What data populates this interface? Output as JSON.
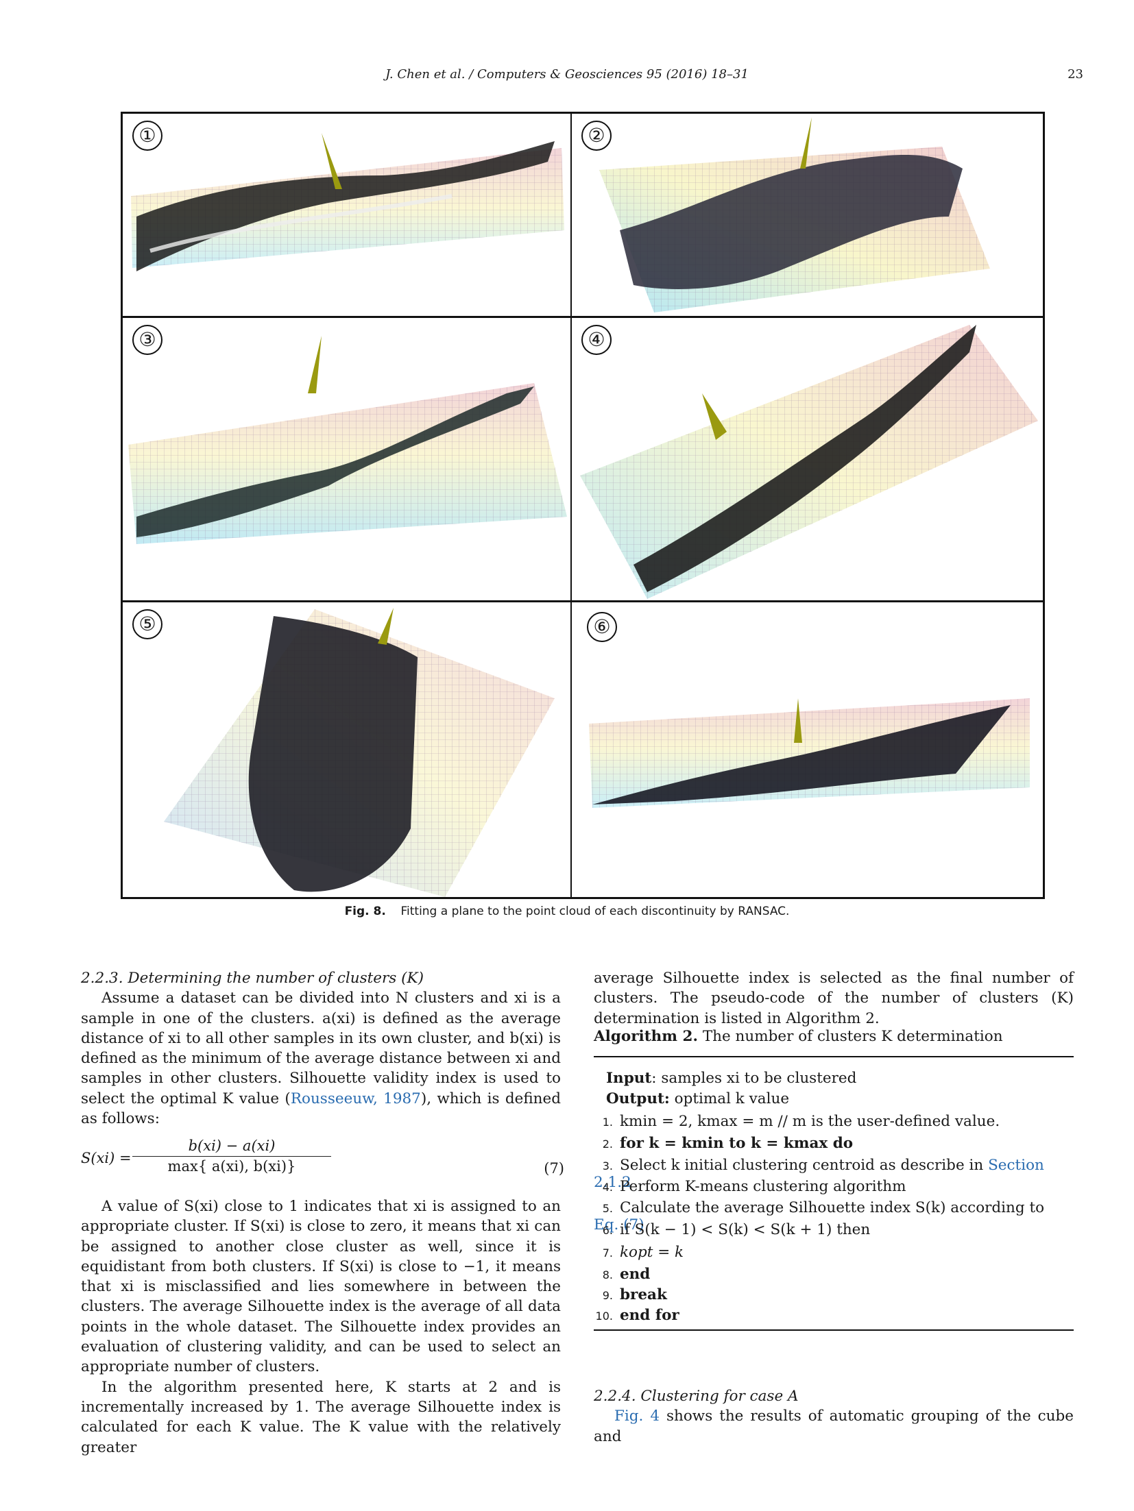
{
  "header": {
    "running_head": "J. Chen et al. / Computers & Geosciences 95 (2016) 18–31",
    "page_number": "23"
  },
  "figure": {
    "panels": [
      "①",
      "②",
      "③",
      "④",
      "⑤",
      "⑥"
    ],
    "caption_label": "Fig. 8.",
    "caption_text": "Fitting a plane to the point cloud of each discontinuity by RANSAC."
  },
  "left_column": {
    "section_heading": "2.2.3.  Determining the number of clusters (K)",
    "para1": "Assume a dataset can be divided into N clusters and xi is a sample in one of the clusters. a(xi) is defined as the average distance of xi to all other samples in its own cluster, and b(xi) is defined as the minimum of the average distance between xi and samples in other clusters. Silhouette validity index is used to select the optimal K value (",
    "para1_cite": "Rousseeuw, 1987",
    "para1_end": "), which is defined as follows:",
    "equation": {
      "lhs": "S(xi) =",
      "numerator": "b(xi) − a(xi)",
      "denominator": "max{ a(xi), b(xi)}",
      "number": "(7)"
    },
    "para2": "A value of S(xi) close to 1 indicates that xi is assigned to an appropriate cluster. If S(xi) is close to zero, it means that xi can be assigned to another close cluster as well, since it is equidistant from both clusters. If S(xi) is close to −1, it means that xi is misclassified and lies somewhere in between the clusters. The average Silhouette index is the average of all data points in the whole dataset. The Silhouette index provides an evaluation of clustering validity, and can be used to select an appropriate number of clusters.",
    "para3": "In the algorithm presented here, K starts at 2 and is incrementally increased by 1. The average Silhouette index is calculated for each K value. The K value with the relatively greater"
  },
  "right_column": {
    "para_cont": "average Silhouette index is selected as the final number of clusters. The pseudo-code of the number of clusters (K) determination is listed in Algorithm 2.",
    "algo_label": "Algorithm 2.",
    "algo_title": "The number of clusters K determination",
    "input_label": "Input",
    "input_text": ": samples xi to be clustered",
    "output_label": "Output:",
    "output_text": " optimal k value",
    "steps": [
      {
        "n": "1.",
        "text": "kmin = 2, kmax = m // m is the user-defined value."
      },
      {
        "n": "2.",
        "text": "for k = kmin to k = kmax do"
      },
      {
        "n": "3.",
        "text": "Select k initial clustering centroid as describe in ",
        "link": "Section 2.1.2"
      },
      {
        "n": "4.",
        "text": "Perform K-means clustering algorithm"
      },
      {
        "n": "5.",
        "text": "Calculate the average Silhouette index S(k) according to ",
        "link": "Eq. (7)"
      },
      {
        "n": "6.",
        "text": "if S(k − 1) < S(k) < S(k + 1) then"
      },
      {
        "n": "7.",
        "text": "kopt = k"
      },
      {
        "n": "8.",
        "text": "end"
      },
      {
        "n": "9.",
        "text": "break"
      },
      {
        "n": "10.",
        "text": "end for"
      }
    ],
    "section_heading": "2.2.4.  Clustering for case A",
    "para_last_link": "Fig. 4",
    "para_last": " shows the results of automatic grouping of the cube and"
  }
}
